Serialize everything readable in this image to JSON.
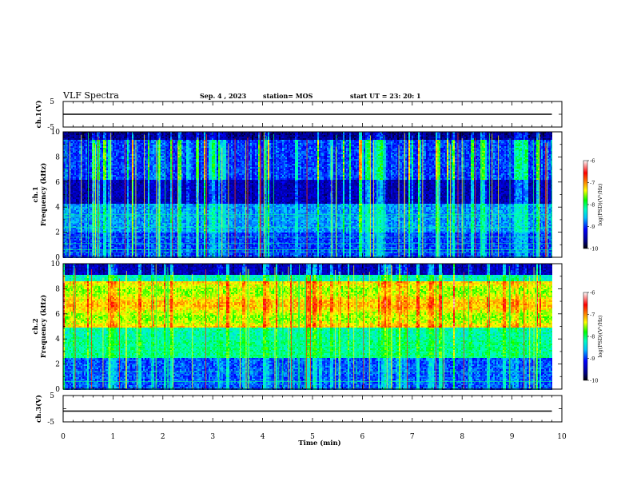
{
  "header": {
    "title": "VLF Spectra",
    "date": "Sep. 4 , 2023",
    "station": "station= MOS",
    "start_ut": "start UT =  23: 20: 1"
  },
  "chart_data": [
    {
      "type": "line",
      "panel": "ch1-waveform",
      "ylabel": "ch.1(V)",
      "ylim": [
        -5,
        5
      ],
      "yticks": [
        "5",
        "",
        "-5"
      ],
      "x": [
        0,
        9.8
      ],
      "values": [
        0,
        0
      ],
      "color": "#000000"
    },
    {
      "type": "heatmap",
      "panel": "ch1-spectrogram",
      "ylabel_line1": "ch.1",
      "ylabel_line2": "Frequency (kHz)",
      "ylim": [
        0,
        10
      ],
      "yticks": [
        "0",
        "2",
        "4",
        "6",
        "8",
        "10"
      ],
      "xlim": [
        0,
        10
      ],
      "data_end_min": 9.8,
      "colorbar": {
        "label": "log(PSD)(V²/Hz)",
        "range": [
          -10,
          -6
        ],
        "ticks": [
          "-6",
          "-7",
          "-8",
          "-9",
          "-10"
        ]
      }
    },
    {
      "type": "heatmap",
      "panel": "ch2-spectrogram",
      "ylabel_line1": "ch.2",
      "ylabel_line2": "Frequency (kHz)",
      "ylim": [
        0,
        10
      ],
      "yticks": [
        "0",
        "2",
        "4",
        "6",
        "8",
        "10"
      ],
      "xlim": [
        0,
        10
      ],
      "data_end_min": 9.8,
      "colorbar": {
        "label": "log(PSD)(V²/Hz)",
        "range": [
          -10,
          -6
        ],
        "ticks": [
          "-6",
          "-7",
          "-8",
          "-9",
          "-10"
        ]
      }
    },
    {
      "type": "line",
      "panel": "ch3-waveform",
      "ylabel": "ch.3(V)",
      "ylim": [
        -5,
        5
      ],
      "yticks": [
        "5",
        "",
        "-5"
      ],
      "x": [
        0,
        9.8
      ],
      "values": [
        0,
        0
      ],
      "color": "#000000"
    }
  ],
  "xaxis": {
    "label": "Time (min)",
    "range": [
      0,
      10
    ],
    "ticks": [
      "0",
      "1",
      "2",
      "3",
      "4",
      "5",
      "6",
      "7",
      "8",
      "9",
      "10"
    ]
  },
  "colormap": [
    "#000000",
    "#00007f",
    "#0000ff",
    "#00bfff",
    "#00ffbf",
    "#00ff00",
    "#ffff00",
    "#ff7f00",
    "#ff0000",
    "#ffffff"
  ]
}
